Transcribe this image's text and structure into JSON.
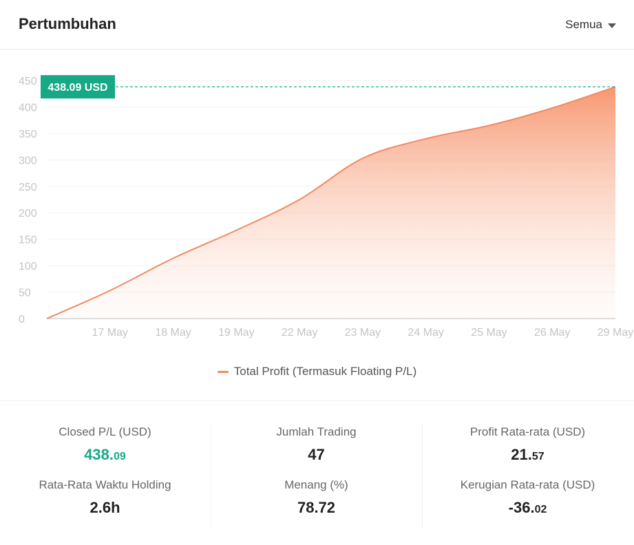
{
  "header": {
    "title": "Pertumbuhan",
    "filter_label": "Semua"
  },
  "chart_data": {
    "type": "area",
    "x": [
      "",
      "17 May",
      "18 May",
      "19 May",
      "22 May",
      "23 May",
      "24 May",
      "25 May",
      "26 May",
      "29 May"
    ],
    "series": [
      {
        "name": "Total Profit (Termasuk Floating P/L)",
        "values": [
          0,
          53,
          114,
          167,
          225,
          303,
          340,
          365,
          398,
          438.09
        ]
      }
    ],
    "y_ticks": [
      0,
      50,
      100,
      150,
      200,
      250,
      300,
      350,
      400,
      450
    ],
    "ylim": [
      0,
      450
    ],
    "marker_label": "438.09 USD",
    "marker_value": 438.09,
    "colors": {
      "line": "#f08a62",
      "area_top": "#f7926a",
      "marker": "#17a886"
    },
    "grid": true,
    "legend_position": "bottom"
  },
  "stats": {
    "closed_pl": {
      "label": "Closed P/L (USD)",
      "int": "438.",
      "dec": "09"
    },
    "jumlah_trading": {
      "label": "Jumlah Trading",
      "value": "47"
    },
    "profit_rata": {
      "label": "Profit Rata-rata (USD)",
      "int": "21.",
      "dec": "57"
    },
    "waktu_holding": {
      "label": "Rata-Rata Waktu Holding",
      "value": "2.6h"
    },
    "menang": {
      "label": "Menang (%)",
      "value": "78.72"
    },
    "kerugian_rata": {
      "label": "Kerugian Rata-rata (USD)",
      "int": "-36.",
      "dec": "02"
    }
  }
}
